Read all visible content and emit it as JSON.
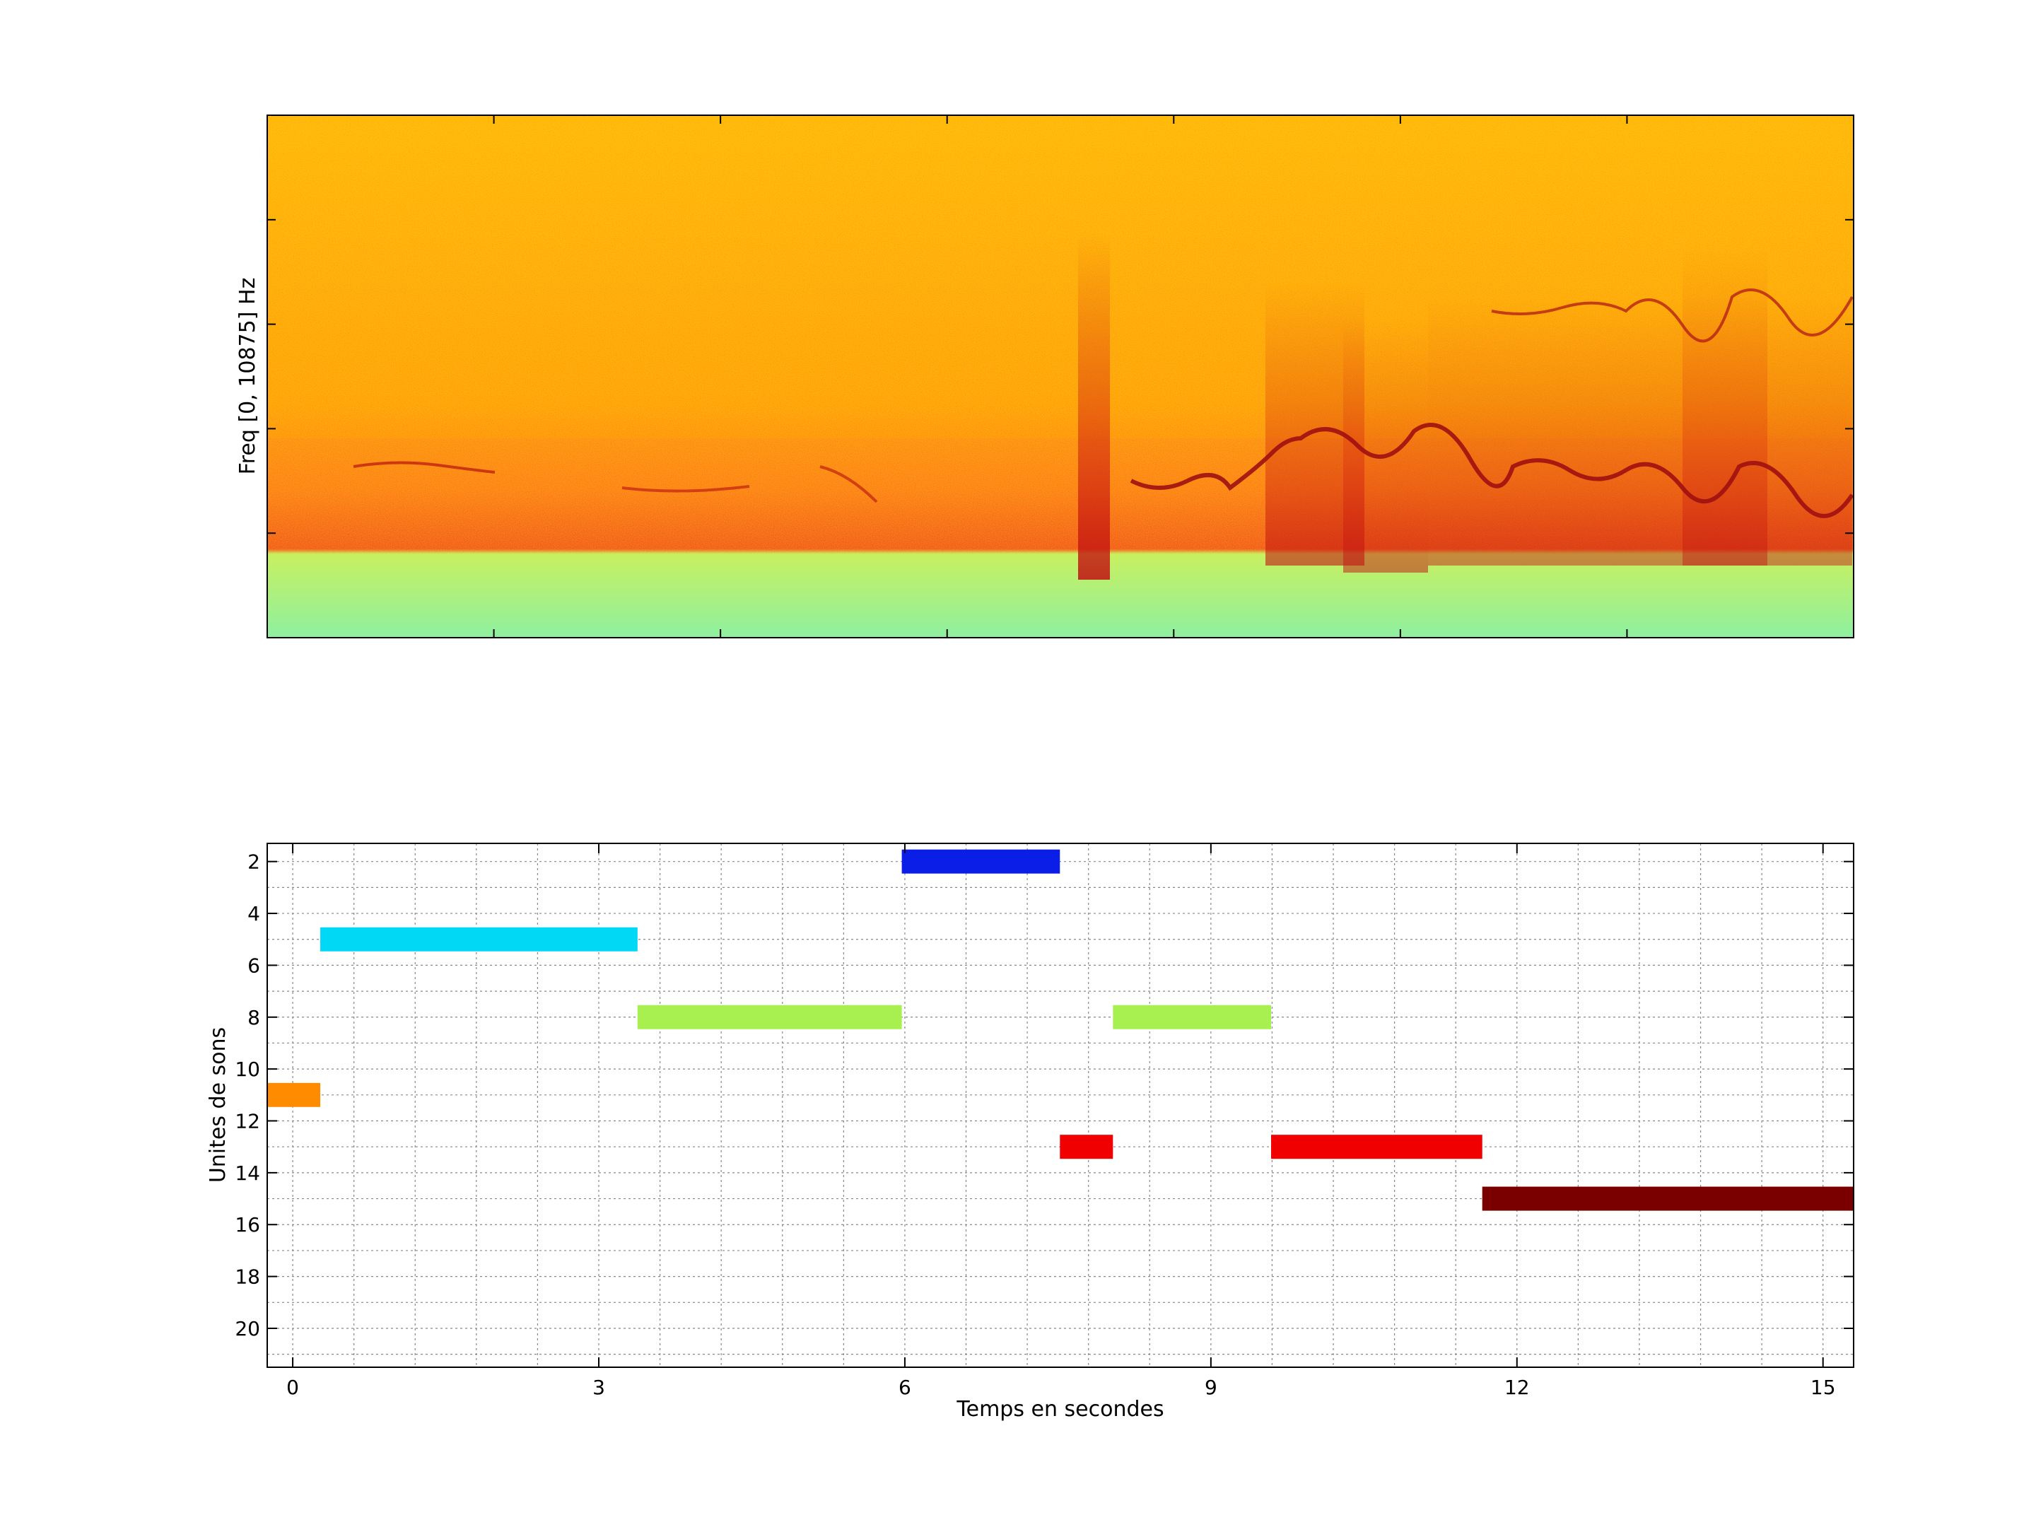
{
  "figure": {
    "background": "#ffffff"
  },
  "chart_data": [
    {
      "type": "heatmap",
      "title": "",
      "xlabel": "",
      "ylabel": "Freq [0, 10875] Hz",
      "ylim": [
        0,
        10875
      ],
      "colormap": "jet",
      "show_tick_labels": false,
      "description_colors": {
        "background": "#ffb000",
        "energy_band": "#e83a0c",
        "low_band": "#a8f07a",
        "trace": "#b01010"
      }
    },
    {
      "type": "bar",
      "orientation": "horizontal-segments",
      "title": "",
      "xlabel": "Temps en secondes",
      "ylabel": "Unites de sons",
      "xlim": [
        -0.25,
        15.3
      ],
      "ylim": [
        1.3,
        21.5
      ],
      "y_reversed": true,
      "grid": true,
      "xticks": [
        0,
        3,
        6,
        9,
        12,
        15
      ],
      "yticks": [
        2,
        4,
        6,
        8,
        10,
        12,
        14,
        16,
        18,
        20
      ],
      "xticks_minor": [
        0.6,
        1.2,
        1.8,
        2.4,
        3.6,
        4.2,
        4.8,
        5.4,
        6.6,
        7.2,
        7.8,
        8.4,
        9.6,
        10.2,
        10.8,
        11.4,
        12.6,
        13.2,
        13.8,
        14.4
      ],
      "yticks_minor": [
        3,
        5,
        7,
        9,
        11,
        13,
        15,
        17,
        19,
        21
      ],
      "segments": [
        {
          "unit": 11,
          "start": -0.25,
          "end": 0.27,
          "color": "#ff8c00"
        },
        {
          "unit": 5,
          "start": 0.27,
          "end": 3.38,
          "color": "#00d8f5"
        },
        {
          "unit": 8,
          "start": 3.38,
          "end": 5.97,
          "color": "#a8f050"
        },
        {
          "unit": 2,
          "start": 5.97,
          "end": 7.52,
          "color": "#0a1ee8"
        },
        {
          "unit": 13,
          "start": 7.52,
          "end": 8.04,
          "color": "#f00000"
        },
        {
          "unit": 8,
          "start": 8.04,
          "end": 9.59,
          "color": "#a8f050"
        },
        {
          "unit": 13,
          "start": 9.59,
          "end": 11.66,
          "color": "#f00000"
        },
        {
          "unit": 15,
          "start": 11.66,
          "end": 15.3,
          "color": "#7a0000"
        }
      ]
    }
  ]
}
